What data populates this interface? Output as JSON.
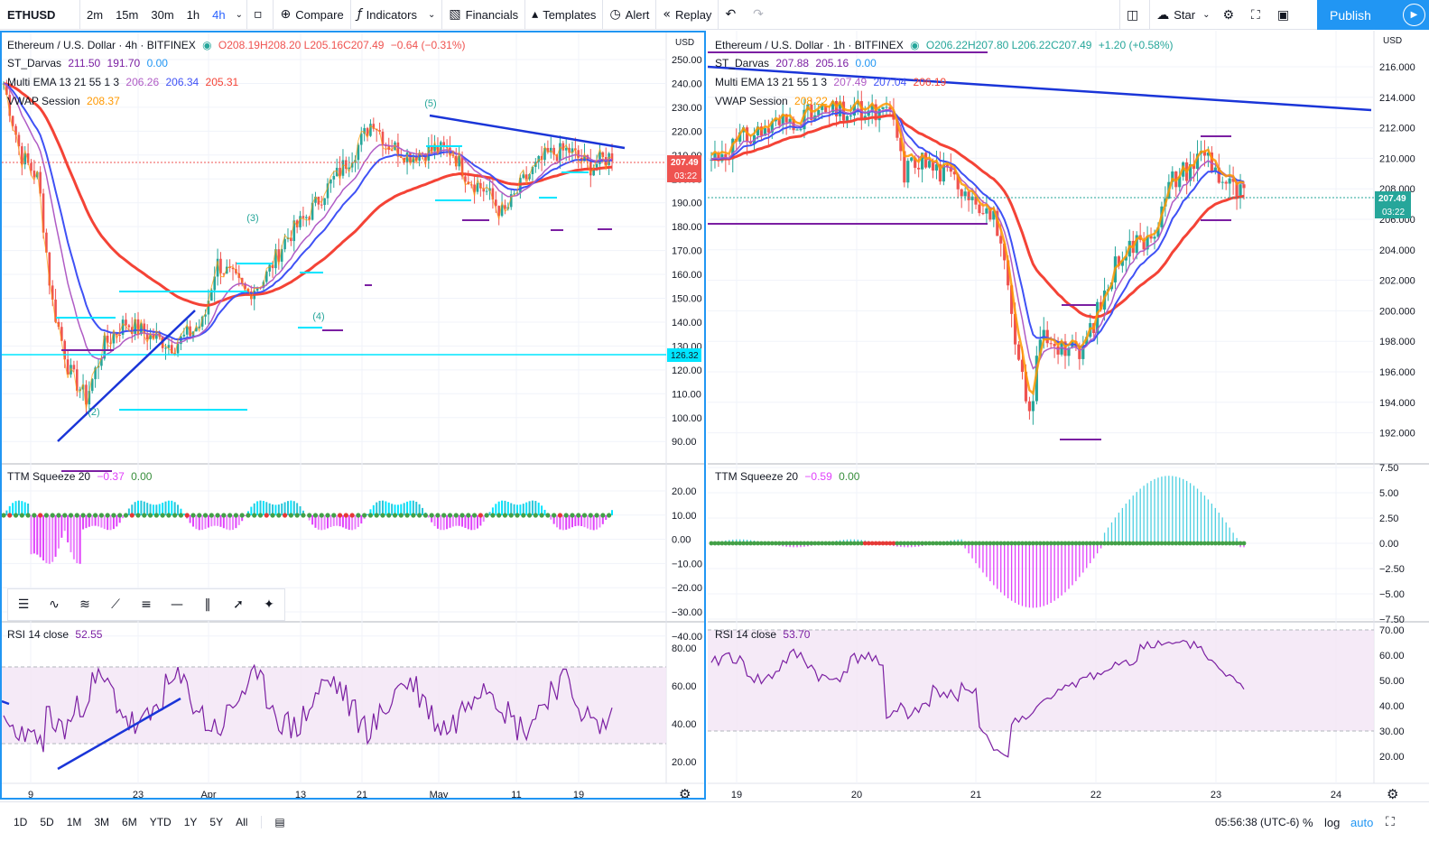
{
  "toolbar": {
    "symbol": "ETHUSD",
    "intervals": [
      "2m",
      "15m",
      "30m",
      "1h",
      "4h"
    ],
    "active_interval": "4h",
    "compare": "Compare",
    "indicators": "Indicators",
    "financials": "Financials",
    "templates": "Templates",
    "alert": "Alert",
    "replay": "Replay",
    "star": "Star",
    "publish": "Publish"
  },
  "left_chart": {
    "title": "Ethereum / U.S. Dollar · 4h · BITFINEX",
    "ohlc": {
      "o": "O208.19",
      "h": "H208.20",
      "l": "L205.16",
      "c": "C207.49",
      "chg": "−0.64 (−0.31%)"
    },
    "darvas": {
      "label": "ST_Darvas",
      "v1": "211.50",
      "v2": "191.70",
      "v3": "0.00"
    },
    "ema": {
      "label": "Multi EMA 13 21 55 1 3",
      "v1": "206.26",
      "v2": "206.34",
      "v3": "205.31"
    },
    "vwap": {
      "label": "VWAP Session",
      "v": "208.37"
    },
    "currency": "USD",
    "price_ticks": [
      "250.00",
      "240.00",
      "230.00",
      "220.00",
      "210.00",
      "200.00",
      "190.00",
      "180.00",
      "170.00",
      "160.00",
      "150.00",
      "140.00",
      "130.00",
      "120.00",
      "110.00",
      "100.00",
      "90.00"
    ],
    "price_tag": "207.49",
    "time_tag": "03:22",
    "line_tag": "126.32",
    "wave_labels": [
      "(2)",
      "(3)",
      "(4)",
      "(5)"
    ],
    "ttm": {
      "label": "TTM Squeeze 20",
      "v1": "−0.37",
      "v2": "0.00",
      "ticks": [
        "20.00",
        "10.00",
        "0.00",
        "−10.00",
        "−20.00",
        "−30.00",
        "−40.00"
      ]
    },
    "rsi": {
      "label": "RSI 14 close",
      "v": "52.55",
      "ticks": [
        "80.00",
        "60.00",
        "40.00",
        "20.00"
      ]
    },
    "time_ticks": [
      "9",
      "23",
      "Apr",
      "13",
      "21",
      "May",
      "11",
      "19"
    ]
  },
  "right_chart": {
    "title": "Ethereum / U.S. Dollar · 1h · BITFINEX",
    "ohlc": {
      "o": "O206.22",
      "h": "H207.80",
      "l": "L206.22",
      "c": "C207.49",
      "chg": "+1.20 (+0.58%)"
    },
    "darvas": {
      "label": "ST_Darvas",
      "v1": "207.88",
      "v2": "205.16",
      "v3": "0.00"
    },
    "ema": {
      "label": "Multi EMA 13 21 55 1 3",
      "v1": "207.49",
      "v2": "207.04",
      "v3": "206.19"
    },
    "vwap": {
      "label": "VWAP Session",
      "v": "208.22"
    },
    "currency": "USD",
    "price_ticks": [
      "216.000",
      "214.000",
      "212.000",
      "210.000",
      "208.000",
      "206.000",
      "204.000",
      "202.000",
      "200.000",
      "198.000",
      "196.000",
      "194.000",
      "192.000"
    ],
    "price_tag": "207.49",
    "time_tag": "03:22",
    "ttm": {
      "label": "TTM Squeeze 20",
      "v1": "−0.59",
      "v2": "0.00",
      "ticks": [
        "7.50",
        "5.00",
        "2.50",
        "0.00",
        "−2.50",
        "−5.00",
        "−7.50"
      ]
    },
    "rsi": {
      "label": "RSI 14 close",
      "v": "53.70",
      "ticks": [
        "70.00",
        "60.00",
        "50.00",
        "40.00",
        "30.00",
        "20.00"
      ]
    },
    "time_ticks": [
      "19",
      "20",
      "21",
      "22",
      "23",
      "24"
    ]
  },
  "bottom": {
    "ranges": [
      "1D",
      "5D",
      "1M",
      "3M",
      "6M",
      "YTD",
      "1Y",
      "5Y",
      "All"
    ],
    "clock": "05:56:38 (UTC-6)",
    "percent": "%",
    "log": "log",
    "auto": "auto"
  },
  "colors": {
    "up": "#26a69a",
    "down": "#ef5350",
    "accent": "#2196f3",
    "ema_red": "#f44336",
    "ema_blue": "#3f51f5",
    "ema_purple": "#b05cc5",
    "vwap": "#ff9800",
    "darvas": "#7b1fa2",
    "trend": "#1a35d8",
    "cyan": "#00e5ff"
  }
}
